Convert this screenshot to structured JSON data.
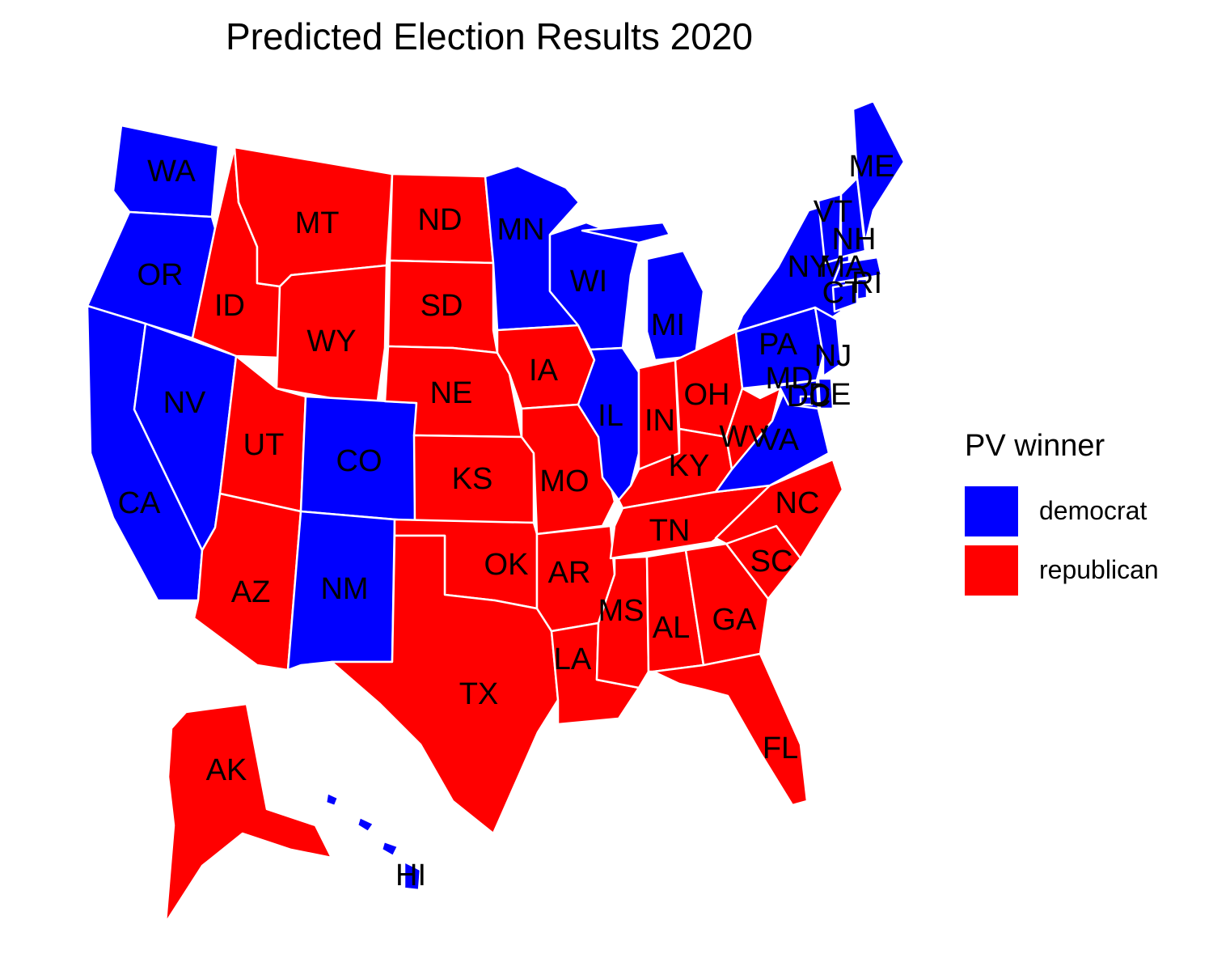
{
  "title": "Predicted Election Results 2020",
  "legend": {
    "title": "PV winner",
    "items": [
      {
        "label": "democrat",
        "color": "#0000ff"
      },
      {
        "label": "republican",
        "color": "#ff0000"
      }
    ]
  },
  "colors": {
    "democrat": "#0000ff",
    "republican": "#ff0000",
    "border": "#ffffff"
  },
  "states": [
    {
      "abbr": "WA",
      "winner": "democrat"
    },
    {
      "abbr": "OR",
      "winner": "democrat"
    },
    {
      "abbr": "CA",
      "winner": "democrat"
    },
    {
      "abbr": "NV",
      "winner": "democrat"
    },
    {
      "abbr": "ID",
      "winner": "republican"
    },
    {
      "abbr": "MT",
      "winner": "republican"
    },
    {
      "abbr": "WY",
      "winner": "republican"
    },
    {
      "abbr": "UT",
      "winner": "republican"
    },
    {
      "abbr": "AZ",
      "winner": "republican"
    },
    {
      "abbr": "CO",
      "winner": "democrat"
    },
    {
      "abbr": "NM",
      "winner": "democrat"
    },
    {
      "abbr": "ND",
      "winner": "republican"
    },
    {
      "abbr": "SD",
      "winner": "republican"
    },
    {
      "abbr": "NE",
      "winner": "republican"
    },
    {
      "abbr": "KS",
      "winner": "republican"
    },
    {
      "abbr": "OK",
      "winner": "republican"
    },
    {
      "abbr": "TX",
      "winner": "republican"
    },
    {
      "abbr": "MN",
      "winner": "democrat"
    },
    {
      "abbr": "IA",
      "winner": "republican"
    },
    {
      "abbr": "MO",
      "winner": "republican"
    },
    {
      "abbr": "AR",
      "winner": "republican"
    },
    {
      "abbr": "LA",
      "winner": "republican"
    },
    {
      "abbr": "WI",
      "winner": "democrat"
    },
    {
      "abbr": "IL",
      "winner": "democrat"
    },
    {
      "abbr": "MI",
      "winner": "democrat"
    },
    {
      "abbr": "IN",
      "winner": "republican"
    },
    {
      "abbr": "OH",
      "winner": "republican"
    },
    {
      "abbr": "KY",
      "winner": "republican"
    },
    {
      "abbr": "TN",
      "winner": "republican"
    },
    {
      "abbr": "MS",
      "winner": "republican"
    },
    {
      "abbr": "AL",
      "winner": "republican"
    },
    {
      "abbr": "GA",
      "winner": "republican"
    },
    {
      "abbr": "FL",
      "winner": "republican"
    },
    {
      "abbr": "SC",
      "winner": "republican"
    },
    {
      "abbr": "NC",
      "winner": "republican"
    },
    {
      "abbr": "VA",
      "winner": "democrat"
    },
    {
      "abbr": "WV",
      "winner": "republican"
    },
    {
      "abbr": "PA",
      "winner": "democrat"
    },
    {
      "abbr": "NY",
      "winner": "democrat"
    },
    {
      "abbr": "NJ",
      "winner": "democrat"
    },
    {
      "abbr": "DE",
      "winner": "democrat"
    },
    {
      "abbr": "MD",
      "winner": "democrat"
    },
    {
      "abbr": "DC",
      "winner": "democrat"
    },
    {
      "abbr": "CT",
      "winner": "democrat"
    },
    {
      "abbr": "RI",
      "winner": "democrat"
    },
    {
      "abbr": "MA",
      "winner": "democrat"
    },
    {
      "abbr": "VT",
      "winner": "democrat"
    },
    {
      "abbr": "NH",
      "winner": "democrat"
    },
    {
      "abbr": "ME",
      "winner": "democrat"
    },
    {
      "abbr": "AK",
      "winner": "republican"
    },
    {
      "abbr": "HI",
      "winner": "democrat"
    }
  ]
}
